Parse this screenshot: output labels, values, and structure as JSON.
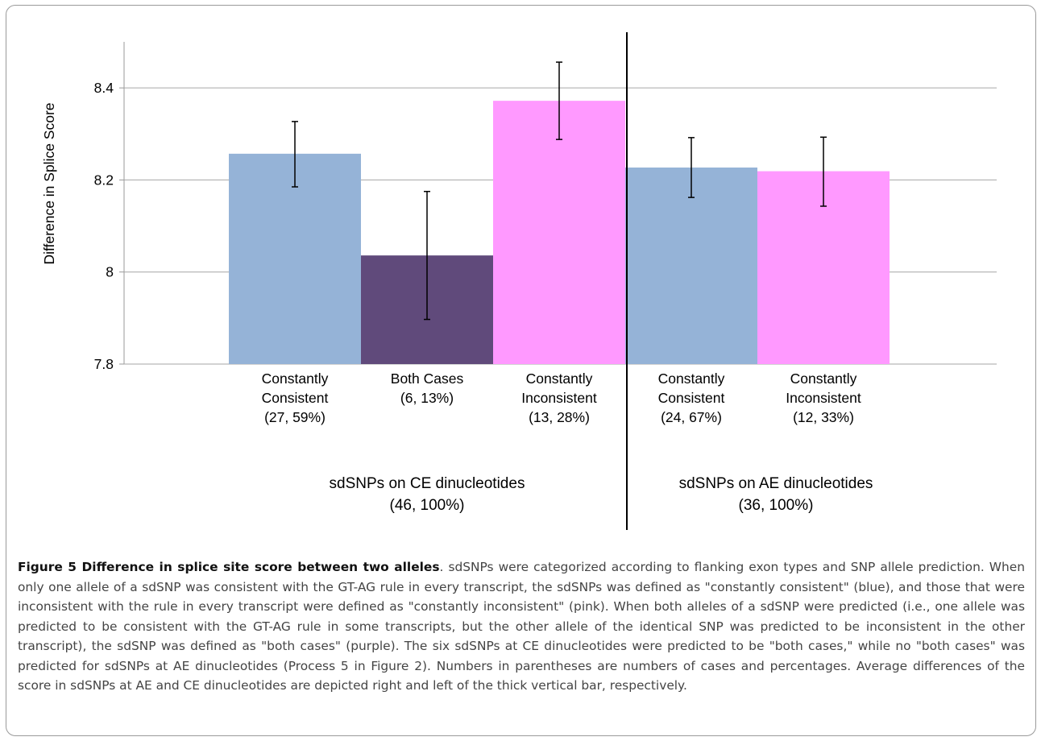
{
  "chart_data": {
    "type": "bar",
    "ylabel": "Difference in Splice Score",
    "xlabel": "",
    "ylim": [
      7.8,
      8.5
    ],
    "yticks": [
      "7.8",
      "8",
      "8.2",
      "8.4"
    ],
    "ytick_values": [
      7.8,
      8.0,
      8.2,
      8.4
    ],
    "grid": true,
    "bars": [
      {
        "label": [
          "Constantly",
          "Consistent",
          "(27, 59%)"
        ],
        "value": 8.257,
        "err_low": 8.185,
        "err_high": 8.327,
        "color": "#95b3d7"
      },
      {
        "label": [
          "Both Cases",
          "(6, 13%)"
        ],
        "value": 8.036,
        "err_low": 7.897,
        "err_high": 8.175,
        "color": "#604a7b"
      },
      {
        "label": [
          "Constantly",
          "Inconsistent",
          "(13, 28%)"
        ],
        "value": 8.372,
        "err_low": 8.288,
        "err_high": 8.456,
        "color": "#ff99ff"
      },
      {
        "label": [
          "Constantly",
          "Consistent",
          "(24, 67%)"
        ],
        "value": 8.227,
        "err_low": 8.162,
        "err_high": 8.292,
        "color": "#95b3d7"
      },
      {
        "label": [
          "Constantly",
          "Inconsistent",
          "(12, 33%)"
        ],
        "value": 8.219,
        "err_low": 8.143,
        "err_high": 8.293,
        "color": "#ff99ff"
      }
    ],
    "groups": [
      {
        "label": [
          "sdSNPs on CE dinucleotides",
          "(46, 100%)"
        ]
      },
      {
        "label": [
          "sdSNPs on AE dinucleotides",
          "(36, 100%)"
        ]
      }
    ]
  },
  "caption": {
    "title": "Figure 5 Difference in splice site score between two alleles",
    "text": ". sdSNPs were categorized according to flanking exon types and SNP allele prediction. When only one allele of a sdSNP was consistent with the GT-AG rule in every transcript, the sdSNPs was defined as \"constantly consistent\" (blue), and those that were inconsistent with the rule in every transcript were defined as \"constantly inconsistent\" (pink). When both alleles of a sdSNP were predicted (i.e., one allele was predicted to be consistent with the GT-AG rule in some transcripts, but the other allele of the identical SNP was predicted to be inconsistent in the other transcript), the sdSNP was defined as \"both cases\" (purple). The six sdSNPs at CE dinucleotides were predicted to be \"both cases,\" while no \"both cases\" was predicted for sdSNPs at AE dinucleotides (Process 5 in Figure 2). Numbers in parentheses are numbers of cases and percentages. Average differences of the score in sdSNPs at AE and CE dinucleotides are depicted right and left of the thick vertical bar, respectively."
  }
}
